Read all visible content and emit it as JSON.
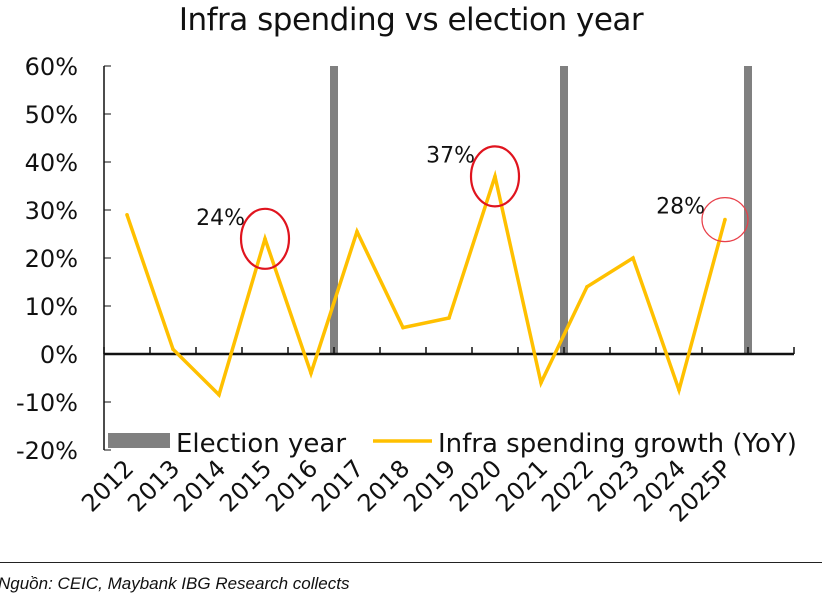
{
  "chart_data": {
    "type": "line",
    "title": "Infra spending vs election year",
    "xlabel": "",
    "ylabel": "",
    "categories": [
      "2012",
      "2013",
      "2014",
      "2015",
      "2016",
      "2017",
      "2018",
      "2019",
      "2020",
      "2021",
      "2022",
      "2023",
      "2024",
      "2025P"
    ],
    "ylim": [
      -20,
      60
    ],
    "yticks": [
      60,
      50,
      40,
      30,
      20,
      10,
      0,
      -10,
      -20
    ],
    "ytick_labels": [
      "60%",
      "50%",
      "40%",
      "30%",
      "20%",
      "10%",
      "0%",
      "-10%",
      "-20%"
    ],
    "series": [
      {
        "name": "Infra spending growth (YoY)",
        "kind": "line",
        "color": "#FFC000",
        "values": [
          29,
          1,
          -8.5,
          24,
          -4,
          25.5,
          5.5,
          7.5,
          37,
          -6,
          14,
          20,
          -7.5,
          28
        ]
      },
      {
        "name": "Election year",
        "kind": "bar",
        "color": "#808080",
        "election_after_categories": [
          "2016",
          "2021",
          "2025P"
        ],
        "value": 60
      }
    ],
    "annotations": [
      {
        "category": "2015",
        "text": "24%",
        "circle_color": "#E0141E"
      },
      {
        "category": "2020",
        "text": "37%",
        "circle_color": "#E0141E"
      },
      {
        "category": "2025P",
        "text": "28%",
        "circle_color": "#E8404A"
      }
    ],
    "legend": {
      "placement": "bottom-inside",
      "entries": [
        "Election year",
        "Infra spending growth (YoY)"
      ]
    },
    "grid": false
  },
  "source": "Nguồn: CEIC, Maybank IBG Research collects"
}
